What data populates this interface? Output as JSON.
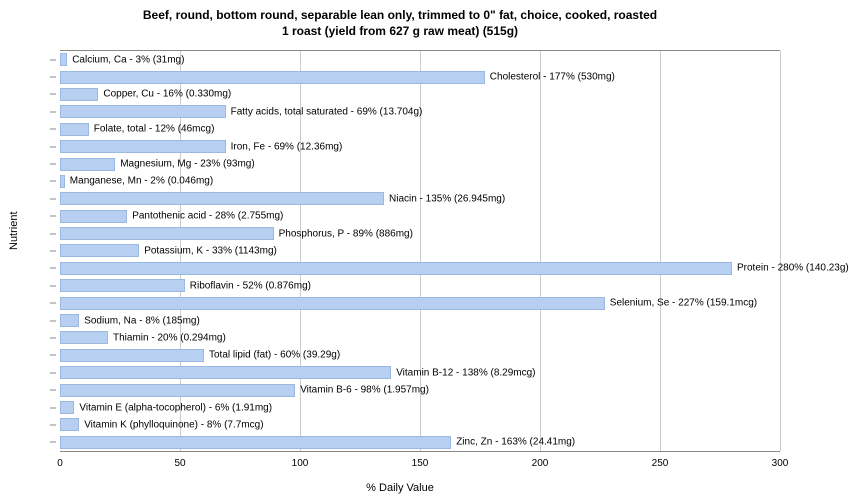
{
  "title_line1": "Beef, round, bottom round, separable lean only, trimmed to 0\" fat, choice, cooked, roasted",
  "title_line2": "1 roast (yield from 627 g raw meat) (515g)",
  "y_axis_label": "Nutrient",
  "x_axis_label": "% Daily Value",
  "chart": {
    "type": "bar",
    "xlim": [
      0,
      300
    ],
    "xticks": [
      0,
      50,
      100,
      150,
      200,
      250,
      300
    ],
    "bar_color": "#b7d0f1",
    "bar_border": "#9bb8e0",
    "grid_color": "#cccccc",
    "background_color": "#ffffff",
    "title_fontsize": 12,
    "label_fontsize": 11,
    "tick_fontsize": 10,
    "bar_label_fontsize": 10,
    "bars": [
      {
        "value": 3,
        "label": "Calcium, Ca - 3% (31mg)"
      },
      {
        "value": 177,
        "label": "Cholesterol - 177% (530mg)"
      },
      {
        "value": 16,
        "label": "Copper, Cu - 16% (0.330mg)"
      },
      {
        "value": 69,
        "label": "Fatty acids, total saturated - 69% (13.704g)"
      },
      {
        "value": 12,
        "label": "Folate, total - 12% (46mcg)"
      },
      {
        "value": 69,
        "label": "Iron, Fe - 69% (12.36mg)"
      },
      {
        "value": 23,
        "label": "Magnesium, Mg - 23% (93mg)"
      },
      {
        "value": 2,
        "label": "Manganese, Mn - 2% (0.046mg)"
      },
      {
        "value": 135,
        "label": "Niacin - 135% (26.945mg)"
      },
      {
        "value": 28,
        "label": "Pantothenic acid - 28% (2.755mg)"
      },
      {
        "value": 89,
        "label": "Phosphorus, P - 89% (886mg)"
      },
      {
        "value": 33,
        "label": "Potassium, K - 33% (1143mg)"
      },
      {
        "value": 280,
        "label": "Protein - 280% (140.23g)"
      },
      {
        "value": 52,
        "label": "Riboflavin - 52% (0.876mg)"
      },
      {
        "value": 227,
        "label": "Selenium, Se - 227% (159.1mcg)"
      },
      {
        "value": 8,
        "label": "Sodium, Na - 8% (185mg)"
      },
      {
        "value": 20,
        "label": "Thiamin - 20% (0.294mg)"
      },
      {
        "value": 60,
        "label": "Total lipid (fat) - 60% (39.29g)"
      },
      {
        "value": 138,
        "label": "Vitamin B-12 - 138% (8.29mcg)"
      },
      {
        "value": 98,
        "label": "Vitamin B-6 - 98% (1.957mg)"
      },
      {
        "value": 6,
        "label": "Vitamin E (alpha-tocopherol) - 6% (1.91mg)"
      },
      {
        "value": 8,
        "label": "Vitamin K (phylloquinone) - 8% (7.7mcg)"
      },
      {
        "value": 163,
        "label": "Zinc, Zn - 163% (24.41mg)"
      }
    ]
  }
}
